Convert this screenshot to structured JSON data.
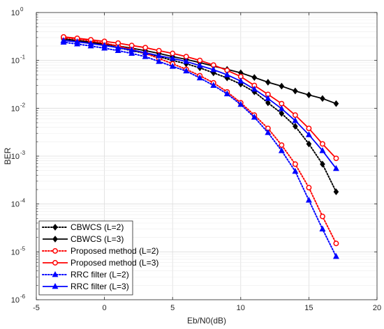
{
  "chart_data": {
    "type": "line",
    "title": "",
    "xlabel": "Eb/N0(dB)",
    "ylabel": "BER",
    "xlim": [
      -5,
      20
    ],
    "ylim": [
      1e-06,
      1
    ],
    "yscale": "log",
    "grid": true,
    "legend_position": "bottom-left",
    "x_ticks": [
      "-5",
      "0",
      "5",
      "10",
      "15",
      "20"
    ],
    "y_ticks": [
      {
        "base": "10",
        "exp": "0"
      },
      {
        "base": "10",
        "exp": "-1"
      },
      {
        "base": "10",
        "exp": "-2"
      },
      {
        "base": "10",
        "exp": "-3"
      },
      {
        "base": "10",
        "exp": "-4"
      },
      {
        "base": "10",
        "exp": "-5"
      },
      {
        "base": "10",
        "exp": "-6"
      }
    ],
    "x": [
      -3,
      -2,
      -1,
      0,
      1,
      2,
      3,
      4,
      5,
      6,
      7,
      8,
      9,
      10,
      11,
      12,
      13,
      14,
      15,
      16,
      17
    ],
    "series": [
      {
        "name": "CBWCS (L=2)",
        "color": "#000000",
        "dash": "dotted",
        "marker": "diamond",
        "values": [
          0.28,
          0.26,
          0.235,
          0.21,
          0.185,
          0.16,
          0.14,
          0.12,
          0.1,
          0.085,
          0.07,
          0.055,
          0.043,
          0.032,
          0.022,
          0.013,
          0.0078,
          0.0042,
          0.0018,
          0.00068,
          0.00018
        ]
      },
      {
        "name": "CBWCS (L=3)",
        "color": "#000000",
        "dash": "solid",
        "marker": "diamond",
        "values": [
          0.28,
          0.26,
          0.24,
          0.22,
          0.2,
          0.18,
          0.16,
          0.14,
          0.12,
          0.105,
          0.09,
          0.076,
          0.065,
          0.055,
          0.044,
          0.035,
          0.029,
          0.023,
          0.019,
          0.016,
          0.0125
        ]
      },
      {
        "name": "Proposed method (L=2)",
        "color": "#ff0000",
        "dash": "dotted",
        "marker": "circle",
        "values": [
          0.3,
          0.28,
          0.255,
          0.23,
          0.2,
          0.17,
          0.14,
          0.11,
          0.085,
          0.065,
          0.048,
          0.034,
          0.022,
          0.013,
          0.0072,
          0.0038,
          0.0017,
          0.00068,
          0.00022,
          5.5e-05,
          1.5e-05
        ]
      },
      {
        "name": "Proposed method (L=3)",
        "color": "#ff0000",
        "dash": "solid",
        "marker": "circle",
        "values": [
          0.31,
          0.29,
          0.27,
          0.25,
          0.23,
          0.205,
          0.185,
          0.16,
          0.14,
          0.12,
          0.1,
          0.08,
          0.062,
          0.046,
          0.03,
          0.0195,
          0.0125,
          0.0072,
          0.0038,
          0.0018,
          0.0009
        ]
      },
      {
        "name": "RRC filter (L=2)",
        "color": "#0000ff",
        "dash": "dotted",
        "marker": "triangle",
        "values": [
          0.24,
          0.22,
          0.2,
          0.18,
          0.16,
          0.14,
          0.12,
          0.095,
          0.075,
          0.06,
          0.043,
          0.03,
          0.02,
          0.012,
          0.0065,
          0.0031,
          0.0013,
          0.00048,
          0.00012,
          3e-05,
          8e-06
        ]
      },
      {
        "name": "RRC filter (L=3)",
        "color": "#0000ff",
        "dash": "solid",
        "marker": "triangle",
        "values": [
          0.26,
          0.245,
          0.225,
          0.205,
          0.185,
          0.165,
          0.145,
          0.125,
          0.11,
          0.095,
          0.078,
          0.064,
          0.05,
          0.037,
          0.025,
          0.016,
          0.0098,
          0.0055,
          0.0028,
          0.0013,
          0.00055
        ]
      }
    ]
  }
}
